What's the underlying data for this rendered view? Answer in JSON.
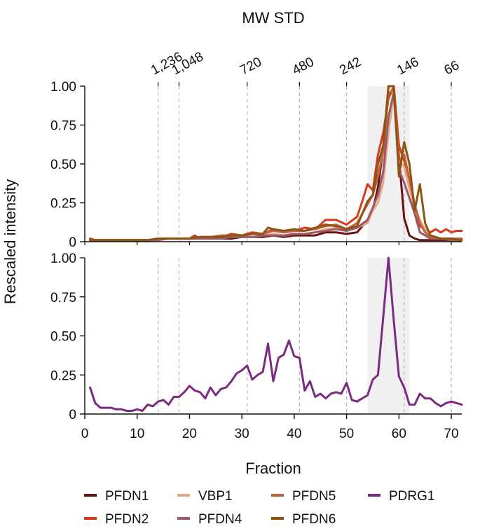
{
  "chart_data": {
    "type": "line",
    "top_title": "MW STD",
    "ylabel": "Rescaled intensity",
    "xlabel": "Fraction",
    "xlim": [
      0,
      72
    ],
    "ylim": [
      0,
      1.0
    ],
    "x_ticks": [
      0,
      10,
      20,
      30,
      40,
      50,
      60,
      70
    ],
    "y_ticks": [
      "0",
      "0.25",
      "0.50",
      "0.75",
      "1.00"
    ],
    "mw_standards": [
      {
        "label": "1,236",
        "fraction": 14
      },
      {
        "label": "1,048",
        "fraction": 18
      },
      {
        "label": "720",
        "fraction": 31
      },
      {
        "label": "480",
        "fraction": 41
      },
      {
        "label": "242",
        "fraction": 50
      },
      {
        "label": "146",
        "fraction": 61
      },
      {
        "label": "66",
        "fraction": 70
      }
    ],
    "shaded_region": [
      54,
      62
    ],
    "panels": [
      {
        "series": [
          {
            "name": "PFDN1",
            "color": "#6b1212",
            "x": [
              1,
              2,
              3,
              5,
              8,
              10,
              12,
              14,
              16,
              18,
              20,
              22,
              24,
              26,
              28,
              30,
              32,
              34,
              36,
              38,
              40,
              42,
              44,
              46,
              48,
              50,
              52,
              54,
              55,
              56,
              57,
              58,
              59,
              60,
              61,
              62,
              63,
              64,
              66,
              68,
              70,
              72
            ],
            "y": [
              0.02,
              0.01,
              0.01,
              0.01,
              0.01,
              0.01,
              0.01,
              0.02,
              0.02,
              0.02,
              0.02,
              0.02,
              0.02,
              0.02,
              0.02,
              0.03,
              0.03,
              0.03,
              0.04,
              0.03,
              0.04,
              0.04,
              0.04,
              0.06,
              0.06,
              0.05,
              0.06,
              0.14,
              0.2,
              0.35,
              0.6,
              1.0,
              1.0,
              0.55,
              0.15,
              0.04,
              0.02,
              0.01,
              0.01,
              0.01,
              0.01,
              0.01
            ]
          },
          {
            "name": "PFDN2",
            "color": "#d73b1f",
            "x": [
              1,
              2,
              3,
              5,
              8,
              10,
              12,
              14,
              16,
              18,
              20,
              21,
              22,
              24,
              26,
              28,
              30,
              32,
              34,
              36,
              38,
              40,
              42,
              44,
              46,
              48,
              50,
              52,
              53,
              54,
              55,
              56,
              57,
              58,
              59,
              60,
              61,
              62,
              63,
              64,
              65,
              66,
              67,
              68,
              69,
              70,
              71,
              72
            ],
            "y": [
              0.02,
              0.01,
              0.01,
              0.01,
              0.01,
              0.01,
              0.01,
              0.02,
              0.02,
              0.02,
              0.02,
              0.04,
              0.02,
              0.03,
              0.03,
              0.05,
              0.04,
              0.06,
              0.05,
              0.08,
              0.06,
              0.07,
              0.09,
              0.08,
              0.14,
              0.14,
              0.11,
              0.16,
              0.26,
              0.37,
              0.33,
              0.56,
              0.7,
              0.92,
              1.0,
              0.62,
              0.52,
              0.4,
              0.18,
              0.1,
              0.08,
              0.06,
              0.08,
              0.06,
              0.08,
              0.06,
              0.07,
              0.07
            ]
          },
          {
            "name": "VBP1",
            "color": "#e9a88a",
            "x": [
              1,
              2,
              3,
              5,
              8,
              10,
              12,
              14,
              16,
              18,
              20,
              22,
              24,
              26,
              28,
              30,
              32,
              34,
              36,
              38,
              40,
              42,
              44,
              46,
              48,
              50,
              52,
              54,
              55,
              56,
              57,
              58,
              59,
              60,
              61,
              62,
              63,
              64,
              65,
              66,
              68,
              70,
              72
            ],
            "y": [
              0.01,
              0.01,
              0.01,
              0.01,
              0.01,
              0.01,
              0.01,
              0.01,
              0.02,
              0.02,
              0.02,
              0.02,
              0.02,
              0.03,
              0.03,
              0.03,
              0.03,
              0.04,
              0.05,
              0.04,
              0.05,
              0.05,
              0.06,
              0.08,
              0.09,
              0.07,
              0.09,
              0.12,
              0.2,
              0.25,
              0.38,
              0.7,
              0.95,
              0.52,
              0.48,
              0.34,
              0.22,
              0.14,
              0.08,
              0.04,
              0.02,
              0.02,
              0.01
            ]
          },
          {
            "name": "PFDN4",
            "color": "#9a5a6a",
            "x": [
              1,
              2,
              3,
              5,
              8,
              10,
              12,
              14,
              16,
              18,
              20,
              22,
              24,
              26,
              28,
              30,
              32,
              34,
              36,
              38,
              40,
              42,
              44,
              46,
              48,
              50,
              52,
              54,
              55,
              56,
              57,
              58,
              59,
              60,
              61,
              62,
              63,
              64,
              65,
              66,
              68,
              70,
              72
            ],
            "y": [
              0.01,
              0.01,
              0.01,
              0.01,
              0.01,
              0.01,
              0.01,
              0.01,
              0.02,
              0.02,
              0.02,
              0.02,
              0.02,
              0.02,
              0.03,
              0.03,
              0.03,
              0.04,
              0.04,
              0.04,
              0.05,
              0.05,
              0.06,
              0.07,
              0.08,
              0.07,
              0.09,
              0.14,
              0.22,
              0.3,
              0.45,
              0.8,
              0.96,
              0.46,
              0.38,
              0.28,
              0.18,
              0.06,
              0.04,
              0.02,
              0.02,
              0.01,
              0.01
            ]
          },
          {
            "name": "PFDN5",
            "color": "#c0633c",
            "x": [
              1,
              2,
              3,
              5,
              8,
              10,
              12,
              14,
              16,
              18,
              20,
              22,
              24,
              26,
              28,
              30,
              32,
              34,
              36,
              38,
              40,
              42,
              44,
              46,
              48,
              50,
              52,
              54,
              55,
              56,
              57,
              58,
              59,
              60,
              61,
              62,
              63,
              64,
              65,
              66,
              68,
              70,
              72
            ],
            "y": [
              0.01,
              0.01,
              0.01,
              0.01,
              0.01,
              0.01,
              0.01,
              0.02,
              0.02,
              0.02,
              0.02,
              0.03,
              0.03,
              0.04,
              0.04,
              0.04,
              0.05,
              0.05,
              0.07,
              0.06,
              0.07,
              0.07,
              0.08,
              0.1,
              0.11,
              0.08,
              0.12,
              0.24,
              0.3,
              0.42,
              0.58,
              0.95,
              0.98,
              0.52,
              0.56,
              0.4,
              0.24,
              0.12,
              0.06,
              0.03,
              0.02,
              0.02,
              0.02
            ]
          },
          {
            "name": "PFDN6",
            "color": "#8c5514",
            "x": [
              1,
              2,
              3,
              5,
              8,
              10,
              12,
              14,
              16,
              18,
              20,
              22,
              24,
              26,
              28,
              30,
              32,
              34,
              35,
              36,
              38,
              40,
              42,
              44,
              46,
              48,
              50,
              52,
              54,
              55,
              56,
              57,
              58,
              59,
              60,
              61,
              62,
              63,
              64,
              65,
              66,
              68,
              70,
              72
            ],
            "y": [
              0.01,
              0.01,
              0.01,
              0.01,
              0.01,
              0.01,
              0.01,
              0.02,
              0.02,
              0.02,
              0.02,
              0.03,
              0.03,
              0.03,
              0.04,
              0.04,
              0.05,
              0.05,
              0.09,
              0.08,
              0.07,
              0.08,
              0.07,
              0.09,
              0.11,
              0.1,
              0.08,
              0.1,
              0.26,
              0.3,
              0.5,
              0.62,
              1.0,
              1.0,
              0.42,
              0.64,
              0.5,
              0.2,
              0.37,
              0.12,
              0.04,
              0.02,
              0.02,
              0.01
            ]
          }
        ]
      },
      {
        "series": [
          {
            "name": "PDRG1",
            "color": "#7b2b82",
            "x": [
              1,
              2,
              3,
              4,
              5,
              6,
              7,
              8,
              9,
              10,
              11,
              12,
              13,
              14,
              15,
              16,
              17,
              18,
              19,
              20,
              21,
              22,
              23,
              24,
              25,
              26,
              27,
              28,
              29,
              30,
              31,
              32,
              33,
              34,
              35,
              36,
              37,
              38,
              39,
              40,
              41,
              42,
              43,
              44,
              45,
              46,
              47,
              48,
              49,
              50,
              51,
              52,
              53,
              54,
              55,
              56,
              57,
              58,
              59,
              60,
              61,
              62,
              63,
              64,
              65,
              66,
              67,
              68,
              69,
              70,
              71,
              72
            ],
            "y": [
              0.17,
              0.07,
              0.04,
              0.04,
              0.04,
              0.03,
              0.03,
              0.02,
              0.02,
              0.03,
              0.02,
              0.06,
              0.05,
              0.08,
              0.09,
              0.06,
              0.11,
              0.11,
              0.14,
              0.18,
              0.15,
              0.14,
              0.1,
              0.17,
              0.12,
              0.16,
              0.17,
              0.21,
              0.26,
              0.28,
              0.31,
              0.22,
              0.25,
              0.27,
              0.45,
              0.21,
              0.36,
              0.38,
              0.47,
              0.37,
              0.36,
              0.15,
              0.21,
              0.11,
              0.13,
              0.1,
              0.13,
              0.14,
              0.13,
              0.2,
              0.09,
              0.08,
              0.1,
              0.12,
              0.22,
              0.25,
              0.62,
              1.0,
              0.6,
              0.24,
              0.17,
              0.06,
              0.06,
              0.13,
              0.1,
              0.1,
              0.07,
              0.05,
              0.07,
              0.08,
              0.07,
              0.06
            ]
          }
        ]
      }
    ],
    "legend": {
      "placement": "bottom",
      "entries": [
        {
          "label": "PFDN1",
          "color": "#6b1212"
        },
        {
          "label": "VBP1",
          "color": "#e9a88a"
        },
        {
          "label": "PFDN5",
          "color": "#c0633c"
        },
        {
          "label": "PDRG1",
          "color": "#7b2b82"
        },
        {
          "label": "PFDN2",
          "color": "#d73b1f"
        },
        {
          "label": "PFDN4",
          "color": "#9a5a6a"
        },
        {
          "label": "PFDN6",
          "color": "#8c5514"
        }
      ]
    },
    "grid": false
  }
}
